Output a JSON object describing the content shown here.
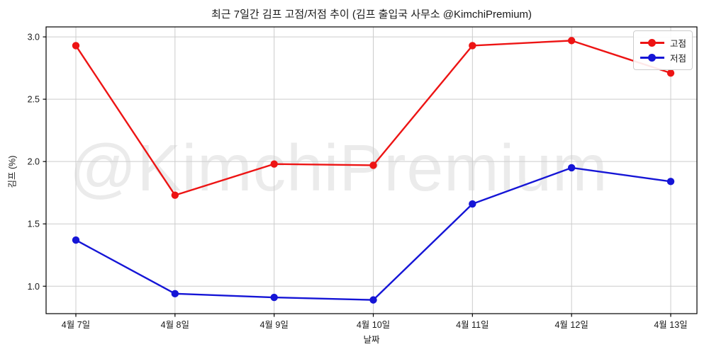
{
  "chart_data": {
    "type": "line",
    "title": "최근 7일간 김프 고점/저점 추이 (김프 출입국 사무소 @KimchiPremium)",
    "xlabel": "날짜",
    "ylabel": "김프 (%)",
    "categories": [
      "4월 7일",
      "4월 8일",
      "4월 9일",
      "4월 10일",
      "4월 11일",
      "4월 12일",
      "4월 13일"
    ],
    "series": [
      {
        "name": "고점",
        "color": "#ed1414",
        "values": [
          2.93,
          1.73,
          1.98,
          1.97,
          2.93,
          2.97,
          2.71
        ]
      },
      {
        "name": "저점",
        "color": "#1515d6",
        "values": [
          1.37,
          0.94,
          0.91,
          0.89,
          1.66,
          1.95,
          1.84
        ]
      }
    ],
    "yticks": [
      "1.0",
      "1.5",
      "2.0",
      "2.5",
      "3.0"
    ],
    "ylim": [
      0.78,
      3.08
    ],
    "grid": true,
    "legend_position": "upper right",
    "watermark": "@KimchiPremium",
    "colors": {
      "grid": "#cccccc",
      "spine": "#000000",
      "tick_label": "#1a1a1a",
      "watermark": "#ebebeb",
      "background": "#ffffff"
    }
  }
}
